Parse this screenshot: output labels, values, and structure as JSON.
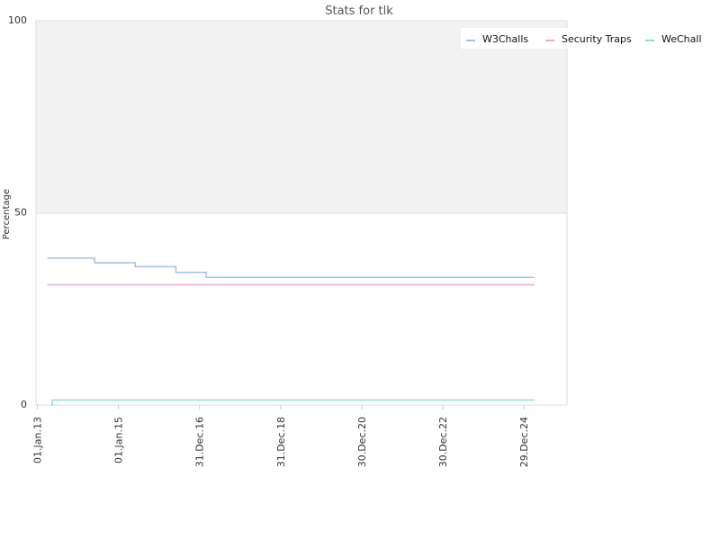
{
  "chart_data": {
    "type": "line",
    "title": "Stats for tlk",
    "xlabel": "",
    "ylabel": "Percentage",
    "ylim": [
      0,
      100
    ],
    "yticks": [
      0,
      50,
      100
    ],
    "xlim": [
      "2012-12-20",
      "2026-01-20"
    ],
    "xticks": [
      {
        "date": "2013-01-01",
        "label": "01.Jan.13"
      },
      {
        "date": "2015-01-01",
        "label": "01.Jan.15"
      },
      {
        "date": "2016-12-31",
        "label": "31.Dec.16"
      },
      {
        "date": "2018-12-31",
        "label": "31.Dec.18"
      },
      {
        "date": "2020-12-30",
        "label": "30.Dec.20"
      },
      {
        "date": "2022-12-30",
        "label": "30.Dec.22"
      },
      {
        "date": "2024-12-29",
        "label": "29.Dec.24"
      }
    ],
    "legend_position": "top-right",
    "grid": false,
    "upper_band_color": "#f2f2f2",
    "series": [
      {
        "name": "W3Challs",
        "color": "#9fc1ec",
        "points": [
          [
            "2013-04-01",
            38.2
          ],
          [
            "2014-06-01",
            37.0
          ],
          [
            "2015-06-01",
            36.0
          ],
          [
            "2016-06-01",
            34.5
          ],
          [
            "2017-03-01",
            33.2
          ],
          [
            "2025-04-01",
            33.2
          ]
        ]
      },
      {
        "name": "Security Traps",
        "color": "#f0a8c0",
        "points": [
          [
            "2013-04-01",
            31.3
          ],
          [
            "2025-04-01",
            31.3
          ]
        ]
      },
      {
        "name": "WeChall",
        "color": "#8fe0d0",
        "points": [
          [
            "2013-05-01",
            0
          ],
          [
            "2013-05-15",
            1.3
          ],
          [
            "2025-04-01",
            1.3
          ]
        ]
      }
    ]
  }
}
